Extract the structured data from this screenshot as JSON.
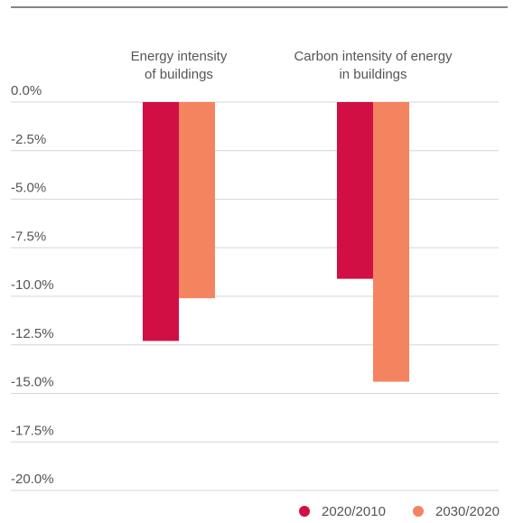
{
  "chart_data": {
    "type": "bar",
    "categories": [
      [
        "Energy intensity",
        "of buildings"
      ],
      [
        "Carbon intensity of energy",
        "in buildings"
      ]
    ],
    "series": [
      {
        "name": "2020/2010",
        "color": "#d10f45",
        "values": [
          -12.3,
          -9.1
        ]
      },
      {
        "name": "2030/2020",
        "color": "#f4845f",
        "values": [
          -10.1,
          -14.4
        ]
      }
    ],
    "ylim": [
      -20,
      0
    ],
    "yticks": [
      0,
      -2.5,
      -5,
      -7.5,
      -10,
      -12.5,
      -15,
      -17.5,
      -20
    ],
    "ytick_labels": [
      "0.0%",
      "-2.5%",
      "-5.0%",
      "-7.5%",
      "-10.0%",
      "-12.5%",
      "-15.0%",
      "-17.5%",
      "-20.0%"
    ],
    "grid": true,
    "legend_position": "bottom-right",
    "title": "",
    "xlabel": "",
    "ylabel": ""
  }
}
